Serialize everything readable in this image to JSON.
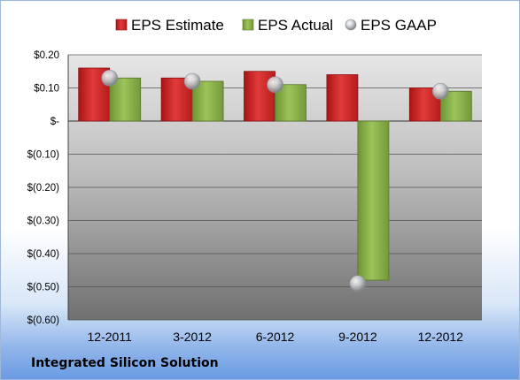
{
  "company": "Integrated Silicon Solution",
  "chart_data": {
    "type": "bar",
    "categories": [
      "12-2011",
      "3-2012",
      "6-2012",
      "9-2012",
      "12-2012"
    ],
    "series": [
      {
        "name": "EPS Estimate",
        "kind": "bar",
        "color": "#d42a2a",
        "values": [
          0.16,
          0.13,
          0.15,
          0.14,
          0.1
        ]
      },
      {
        "name": "EPS Actual",
        "kind": "bar",
        "color": "#8db548",
        "values": [
          0.13,
          0.12,
          0.11,
          -0.48,
          0.09
        ]
      },
      {
        "name": "EPS GAAP",
        "kind": "marker",
        "color": "#b9bcc0",
        "values": [
          0.13,
          0.12,
          0.11,
          -0.49,
          0.09
        ]
      }
    ],
    "yticks": [
      {
        "value": 0.2,
        "label": "$0.20"
      },
      {
        "value": 0.1,
        "label": "$0.10"
      },
      {
        "value": 0.0,
        "label": "$-"
      },
      {
        "value": -0.1,
        "label": "$(0.10)"
      },
      {
        "value": -0.2,
        "label": "$(0.20)"
      },
      {
        "value": -0.3,
        "label": "$(0.30)"
      },
      {
        "value": -0.4,
        "label": "$(0.40)"
      },
      {
        "value": -0.5,
        "label": "$(0.50)"
      },
      {
        "value": -0.6,
        "label": "$(0.60)"
      }
    ],
    "ylim": [
      -0.6,
      0.2
    ],
    "grid": true,
    "legend_position": "top"
  }
}
